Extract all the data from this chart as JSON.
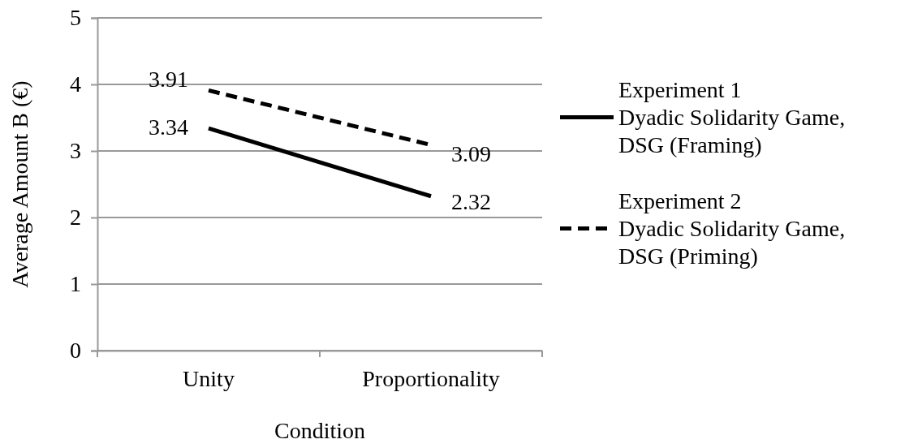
{
  "chart_data": {
    "type": "line",
    "xlabel": "Condition",
    "ylabel": "Average Amount B (€)",
    "categories": [
      "Unity",
      "Proportionality"
    ],
    "series": [
      {
        "name": "Experiment 1 Dyadic Solidarity Game, DSG (Framing)",
        "color": "#000000",
        "line_style": "solid",
        "values": [
          3.34,
          2.32
        ]
      },
      {
        "name": "Experiment 2 Dyadic Solidarity Game, DSG (Priming)",
        "color": "#000000",
        "line_style": "dashed",
        "values": [
          3.91,
          3.09
        ]
      }
    ],
    "ylim": [
      0,
      5
    ],
    "yticks": [
      0,
      1,
      2,
      3,
      4,
      5
    ],
    "grid": "y",
    "legend": "right",
    "data_labels": true,
    "marker": "none"
  }
}
